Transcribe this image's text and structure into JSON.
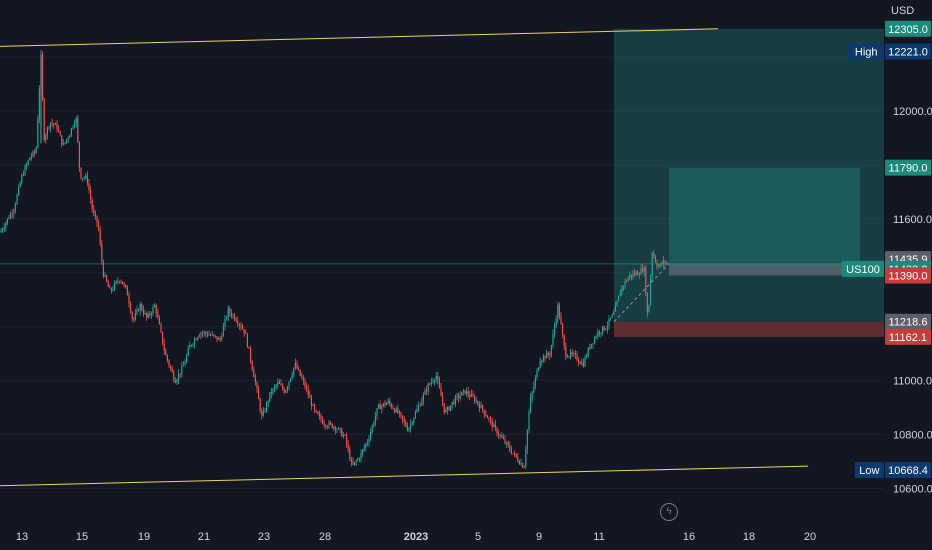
{
  "currency": "USD",
  "symbol": "US100",
  "colors": {
    "background": "#131722",
    "up": "#26a69a",
    "down": "#ef5350",
    "trendline": "#f0d060",
    "profit_zone": "#26a69a",
    "loss_zone": "#ef5350",
    "tag_blue": "#0c3a6e",
    "tag_green": "#1b8a7a",
    "tag_red": "#c93b3b",
    "tag_gray": "#5d606b"
  },
  "chart_data": {
    "type": "candlestick",
    "y_ticks": [
      10600.0,
      10800.0,
      11000.0,
      11200.0,
      11400.0,
      11600.0,
      11800.0,
      12000.0,
      12200.0
    ],
    "y_tick_labels": [
      "10600.0",
      "10800.0",
      "11000.0",
      "11600.0",
      "12000.0"
    ],
    "ylim": [
      10520,
      12335
    ],
    "x_tick_labels": [
      "13",
      "15",
      "19",
      "21",
      "23",
      "28",
      "2023",
      "5",
      "9",
      "11",
      "16",
      "18",
      "20"
    ],
    "price_path": [
      [
        0,
        11550
      ],
      [
        14,
        11640
      ],
      [
        22,
        11760
      ],
      [
        30,
        11830
      ],
      [
        36,
        11850
      ],
      [
        41,
        12200
      ],
      [
        44,
        11900
      ],
      [
        50,
        11960
      ],
      [
        57,
        11940
      ],
      [
        63,
        11870
      ],
      [
        70,
        11920
      ],
      [
        76,
        11980
      ],
      [
        80,
        11760
      ],
      [
        87,
        11750
      ],
      [
        93,
        11620
      ],
      [
        98,
        11580
      ],
      [
        103,
        11400
      ],
      [
        110,
        11330
      ],
      [
        120,
        11380
      ],
      [
        127,
        11330
      ],
      [
        133,
        11220
      ],
      [
        140,
        11280
      ],
      [
        147,
        11230
      ],
      [
        155,
        11280
      ],
      [
        165,
        11100
      ],
      [
        175,
        11000
      ],
      [
        183,
        11050
      ],
      [
        190,
        11130
      ],
      [
        200,
        11180
      ],
      [
        210,
        11170
      ],
      [
        220,
        11150
      ],
      [
        228,
        11260
      ],
      [
        236,
        11230
      ],
      [
        245,
        11180
      ],
      [
        255,
        11000
      ],
      [
        262,
        10860
      ],
      [
        270,
        10950
      ],
      [
        278,
        10990
      ],
      [
        285,
        10960
      ],
      [
        295,
        11060
      ],
      [
        305,
        10980
      ],
      [
        315,
        10880
      ],
      [
        325,
        10840
      ],
      [
        335,
        10830
      ],
      [
        345,
        10790
      ],
      [
        352,
        10680
      ],
      [
        360,
        10720
      ],
      [
        368,
        10780
      ],
      [
        378,
        10900
      ],
      [
        388,
        10920
      ],
      [
        398,
        10880
      ],
      [
        408,
        10820
      ],
      [
        418,
        10900
      ],
      [
        428,
        10980
      ],
      [
        436,
        11020
      ],
      [
        445,
        10880
      ],
      [
        455,
        10930
      ],
      [
        465,
        10960
      ],
      [
        475,
        10930
      ],
      [
        485,
        10880
      ],
      [
        495,
        10820
      ],
      [
        505,
        10770
      ],
      [
        515,
        10720
      ],
      [
        524,
        10680
      ],
      [
        530,
        10920
      ],
      [
        540,
        11080
      ],
      [
        550,
        11100
      ],
      [
        558,
        11280
      ],
      [
        565,
        11100
      ],
      [
        575,
        11090
      ],
      [
        583,
        11060
      ],
      [
        590,
        11130
      ],
      [
        598,
        11180
      ],
      [
        606,
        11200
      ],
      [
        614,
        11250
      ],
      [
        622,
        11350
      ],
      [
        630,
        11390
      ],
      [
        638,
        11400
      ],
      [
        644,
        11420
      ],
      [
        648,
        11220
      ],
      [
        652,
        11480
      ],
      [
        658,
        11420
      ],
      [
        664,
        11440
      ],
      [
        669,
        11433
      ]
    ],
    "all_time_high": 12221.0,
    "all_time_low": 10668.4,
    "last_price": 11433.2,
    "trendline_upper": {
      "start": [
        0,
        12240
      ],
      "end": [
        718,
        12305
      ]
    },
    "trendline_lower": {
      "start": [
        0,
        10610
      ],
      "end": [
        808,
        10683
      ]
    },
    "long_position": {
      "entry": 11218.6,
      "stop": 11162.1,
      "target": 12305.0,
      "x_start": 614,
      "x_end": 884
    },
    "inner_position": {
      "entry": 11433.2,
      "stop": 11390.0,
      "target": 11790.0,
      "x_start": 669,
      "x_end": 860
    }
  },
  "price_tags": [
    {
      "label": "12305.0",
      "value": 12305.0,
      "style": "green"
    },
    {
      "label": "12221.0",
      "value": 12221.0,
      "style": "blue",
      "prefix": "High"
    },
    {
      "label": "11790.0",
      "value": 11790.0,
      "style": "green"
    },
    {
      "label": "11435.9",
      "value": 11435.9,
      "style": "gray"
    },
    {
      "label": "11433.2",
      "value": 11433.2,
      "style": "green",
      "prefix": "US100"
    },
    {
      "label": "11390.0",
      "value": 11390.0,
      "style": "red"
    },
    {
      "label": "11218.6",
      "value": 11218.6,
      "style": "gray"
    },
    {
      "label": "11162.1",
      "value": 11162.1,
      "style": "red"
    },
    {
      "label": "10668.4",
      "value": 10668.4,
      "style": "blue",
      "prefix": "Low"
    }
  ]
}
